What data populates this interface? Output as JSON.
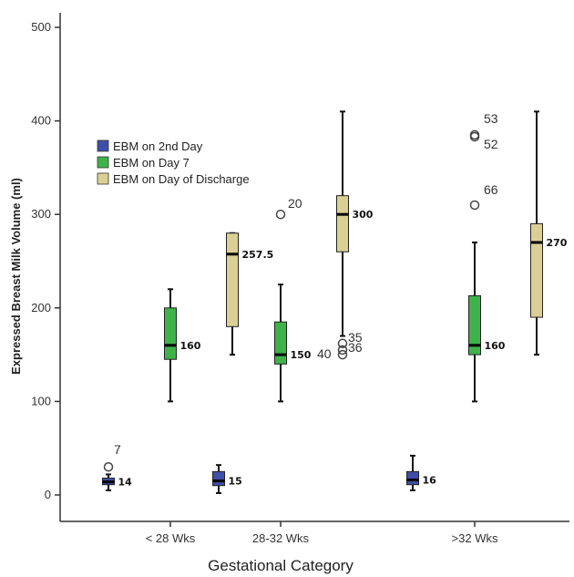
{
  "chart_data": {
    "type": "box",
    "xlabel": "Gestational Category",
    "ylabel": "Expressed Breast Milk Volume (ml)",
    "ylim": [
      0,
      500
    ],
    "yticks": [
      0,
      100,
      200,
      300,
      400,
      500
    ],
    "categories": [
      "< 28 Wks",
      "28-32 Wks",
      ">32 Wks"
    ],
    "legend_position": "upper-left",
    "series": [
      {
        "name": "EBM on 2nd Day",
        "color": "#3f4fa8",
        "boxes": [
          {
            "min": 5,
            "q1": 11,
            "median": 14,
            "q3": 18,
            "max": 22,
            "median_label": "14",
            "outliers": [
              {
                "value": 30,
                "label": "7"
              }
            ]
          },
          {
            "min": 2,
            "q1": 10,
            "median": 15,
            "q3": 25,
            "max": 32,
            "median_label": "15",
            "outliers": []
          },
          {
            "min": 5,
            "q1": 11,
            "median": 16,
            "q3": 25,
            "max": 42,
            "median_label": "16",
            "outliers": []
          }
        ]
      },
      {
        "name": "EBM on Day 7",
        "color": "#3fb24a",
        "boxes": [
          {
            "min": 100,
            "q1": 145,
            "median": 160,
            "q3": 200,
            "max": 220,
            "median_label": "160",
            "outliers": []
          },
          {
            "min": 100,
            "q1": 140,
            "median": 150,
            "q3": 185,
            "max": 225,
            "median_label": "150",
            "outliers": [
              {
                "value": 300,
                "label": "20"
              }
            ]
          },
          {
            "min": 100,
            "q1": 150,
            "median": 160,
            "q3": 213,
            "max": 270,
            "median_label": "160",
            "outliers": [
              {
                "value": 385,
                "label": "53"
              },
              {
                "value": 383,
                "label": "52"
              },
              {
                "value": 310,
                "label": "66"
              }
            ]
          }
        ]
      },
      {
        "name": "EBM on Day of Discharge",
        "color": "#dccf95",
        "boxes": [
          {
            "min": 150,
            "q1": 180,
            "median": 257.5,
            "q3": 280,
            "max": 280,
            "median_label": "257.5",
            "outliers": []
          },
          {
            "min": 170,
            "q1": 260,
            "median": 300,
            "q3": 320,
            "max": 410,
            "median_label": "300",
            "outliers": [
              {
                "value": 162,
                "label": "35"
              },
              {
                "value": 155,
                "label": "36"
              },
              {
                "value": 150,
                "label": "40"
              }
            ]
          },
          {
            "min": 150,
            "q1": 190,
            "median": 270,
            "q3": 290,
            "max": 410,
            "median_label": "270",
            "outliers": []
          }
        ]
      }
    ]
  }
}
